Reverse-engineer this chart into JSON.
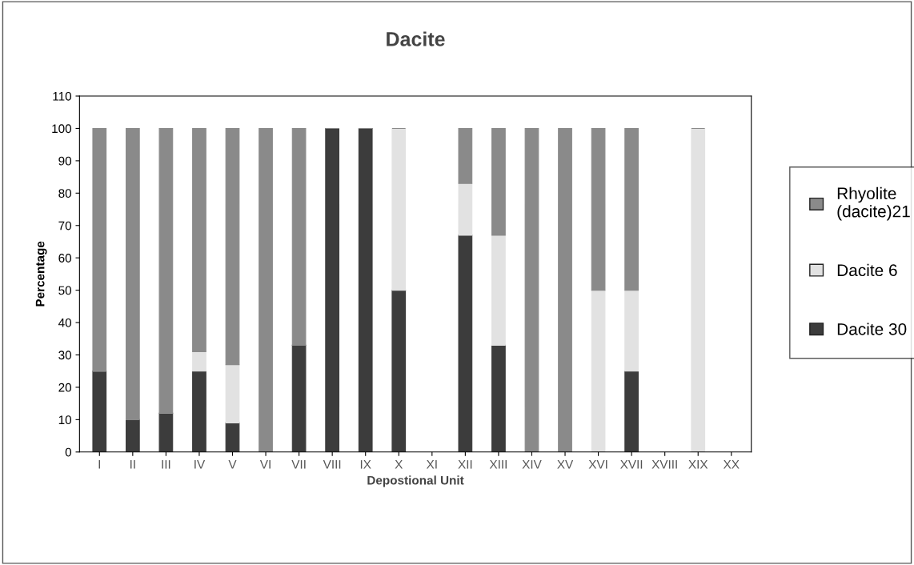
{
  "chart_data": {
    "type": "bar",
    "title": "Dacite",
    "xlabel": "Depostional Unit",
    "ylabel": "Percentage",
    "categories": [
      "I",
      "II",
      "III",
      "IV",
      "V",
      "VI",
      "VII",
      "VIII",
      "IX",
      "X",
      "XI",
      "XII",
      "XIII",
      "XIV",
      "XV",
      "XVI",
      "XVII",
      "XVIII",
      "XIX",
      "XX"
    ],
    "stacked": true,
    "series": [
      {
        "name": "Dacite 30",
        "color": "#3c3c3c",
        "values": [
          25,
          10,
          12,
          25,
          9,
          0,
          33,
          100,
          100,
          50,
          null,
          67,
          33,
          0,
          0,
          0,
          25,
          null,
          0,
          null
        ]
      },
      {
        "name": "Dacite 6",
        "color": "#e2e2e2",
        "values": [
          0,
          0,
          0,
          6,
          18,
          0,
          0,
          0,
          0,
          50,
          null,
          16,
          34,
          0,
          0,
          50,
          25,
          null,
          100,
          null
        ]
      },
      {
        "name": "Rhyolite\n(dacite)21",
        "color": "#8a8a8a",
        "values": [
          75,
          90,
          88,
          69,
          73,
          100,
          67,
          0,
          0,
          0,
          null,
          17,
          33,
          100,
          100,
          50,
          50,
          null,
          0,
          null
        ]
      }
    ],
    "ylim": [
      0,
      110
    ],
    "yticks": [
      0,
      10,
      20,
      30,
      40,
      50,
      60,
      70,
      80,
      90,
      100,
      110
    ],
    "grid": false,
    "legend": "right"
  }
}
